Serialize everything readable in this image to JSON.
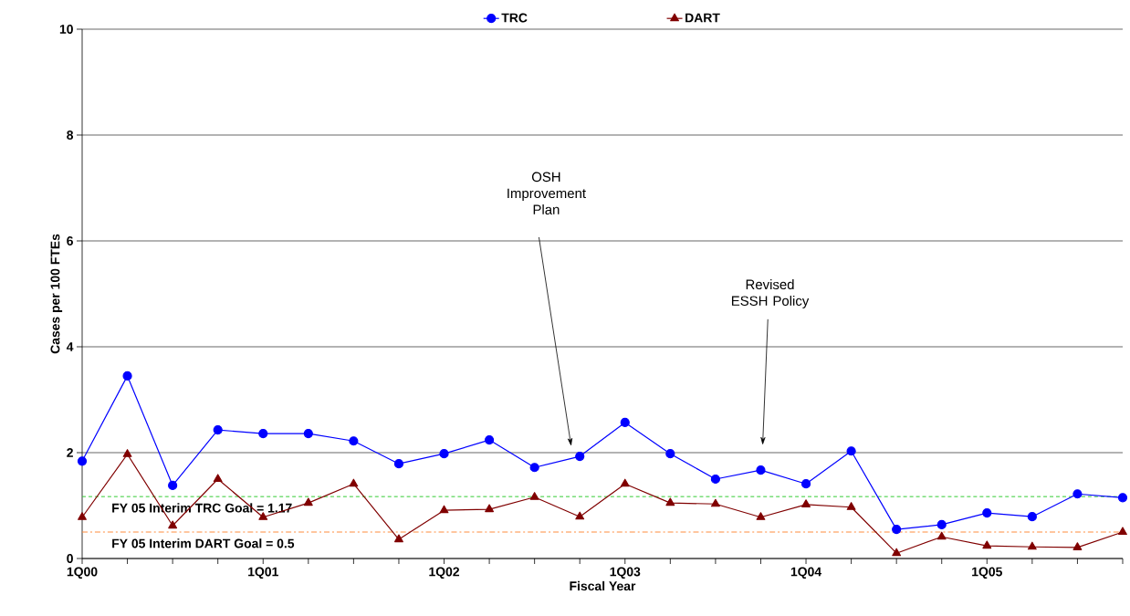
{
  "chart_data": {
    "type": "line",
    "xlabel": "Fiscal Year",
    "ylabel": "Cases per 100 FTEs",
    "categories": [
      "1Q00",
      null,
      null,
      null,
      "1Q01",
      null,
      null,
      null,
      "1Q02",
      null,
      null,
      null,
      "1Q03",
      null,
      null,
      null,
      "1Q04",
      null,
      null,
      null,
      "1Q05",
      null,
      null,
      null
    ],
    "series": [
      {
        "name": "TRC",
        "color": "#0000ff",
        "marker": "circle",
        "values": [
          1.84,
          3.45,
          1.38,
          2.43,
          2.36,
          2.36,
          2.22,
          1.79,
          1.98,
          2.24,
          1.72,
          1.93,
          2.57,
          1.98,
          1.5,
          1.67,
          1.41,
          2.03,
          0.55,
          0.64,
          0.86,
          0.79,
          1.22,
          1.15
        ]
      },
      {
        "name": "DART",
        "color": "#800000",
        "marker": "triangle",
        "values": [
          0.78,
          1.97,
          0.62,
          1.5,
          0.78,
          1.05,
          1.41,
          0.36,
          0.91,
          0.93,
          1.16,
          0.79,
          1.41,
          1.05,
          1.03,
          0.78,
          1.02,
          0.97,
          0.1,
          0.41,
          0.24,
          0.22,
          0.21,
          0.5
        ]
      }
    ],
    "ylim": [
      0,
      10
    ],
    "yticks": [
      0,
      2,
      4,
      6,
      8,
      10
    ],
    "grid": "y",
    "legend": "top",
    "ref_lines": [
      {
        "axis": "y",
        "value": 1.17,
        "label": "FY 05 Interim TRC Goal = 1.17",
        "color": "#33cc33",
        "line_style": "dashed"
      },
      {
        "axis": "y",
        "value": 0.5,
        "label": "FY 05 Interim DART Goal = 0.5",
        "color": "#ff8c3c",
        "line_style": "dashdot"
      }
    ],
    "annotations": [
      "OSH Improvement Plan",
      "Revised ESSH Policy"
    ]
  }
}
